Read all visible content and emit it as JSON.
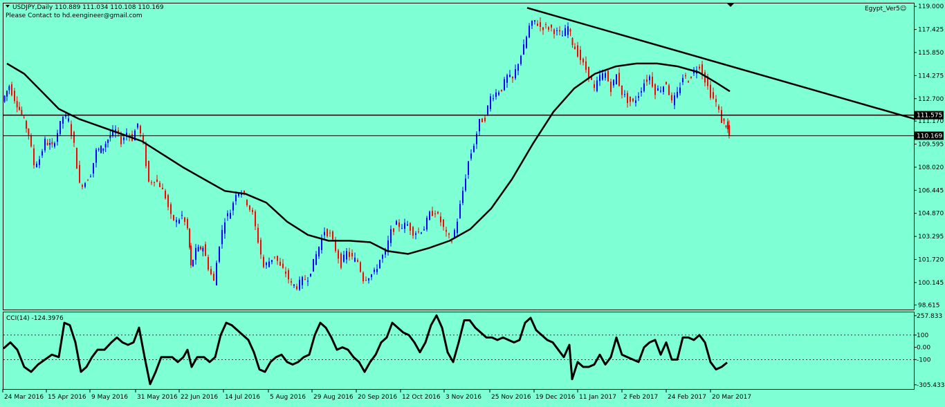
{
  "header": {
    "symbol_line": "USDJPY,Daily  110.889 111.034 110.108 110.169",
    "contact_line": "Please Contact to hd.eengineer@gmail.com",
    "indicator_name": "Egypt_Ver5☺",
    "menu_icon": "triangle-down-icon",
    "scroll_icon": "triangle-down-icon"
  },
  "colors": {
    "background": "#7FFFD4",
    "bull": "#0000FF",
    "bear": "#FF0000",
    "line": "#000000"
  },
  "chart_data": [
    {
      "type": "candlestick",
      "symbol": "USDJPY",
      "timeframe": "Daily",
      "last_ohlc": {
        "open": 110.889,
        "high": 111.034,
        "low": 110.108,
        "close": 110.169
      },
      "ylim": [
        98.3,
        119.2
      ],
      "y_ticks": [
        "119.000",
        "117.425",
        "115.850",
        "114.275",
        "112.700",
        "111.170",
        "109.595",
        "108.020",
        "106.445",
        "104.870",
        "103.295",
        "101.720",
        "100.145",
        "98.615"
      ],
      "x_ticks": [
        "24 Mar 2016",
        "15 Apr 2016",
        "9 May 2016",
        "31 May 2016",
        "22 Jun 2016",
        "14 Jul 2016",
        "5 Aug 2016",
        "29 Aug 2016",
        "20 Sep 2016",
        "12 Oct 2016",
        "3 Nov 2016",
        "25 Nov 2016",
        "19 Dec 2016",
        "11 Jan 2017",
        "2 Feb 2017",
        "24 Feb 2017",
        "20 Mar 2017"
      ],
      "price_path": [
        [
          0,
          112.5
        ],
        [
          10,
          113.6
        ],
        [
          18,
          112.7
        ],
        [
          28,
          111.6
        ],
        [
          38,
          110.3
        ],
        [
          46,
          108.2
        ],
        [
          54,
          108.6
        ],
        [
          62,
          109.8
        ],
        [
          72,
          109.4
        ],
        [
          80,
          110.4
        ],
        [
          88,
          111.5
        ],
        [
          96,
          111.2
        ],
        [
          104,
          109.5
        ],
        [
          112,
          106.8
        ],
        [
          120,
          107.0
        ],
        [
          128,
          107.6
        ],
        [
          136,
          109.1
        ],
        [
          146,
          109.4
        ],
        [
          156,
          110.2
        ],
        [
          164,
          110.5
        ],
        [
          172,
          109.8
        ],
        [
          180,
          110.4
        ],
        [
          188,
          110.0
        ],
        [
          196,
          111.0
        ],
        [
          204,
          109.5
        ],
        [
          212,
          107.0
        ],
        [
          220,
          107.2
        ],
        [
          228,
          106.8
        ],
        [
          236,
          106.0
        ],
        [
          244,
          104.6
        ],
        [
          252,
          104.3
        ],
        [
          260,
          104.7
        ],
        [
          268,
          103.8
        ],
        [
          272,
          101.2
        ],
        [
          280,
          102.3
        ],
        [
          290,
          102.6
        ],
        [
          298,
          101.2
        ],
        [
          306,
          100.2
        ],
        [
          314,
          102.8
        ],
        [
          322,
          104.5
        ],
        [
          330,
          105.0
        ],
        [
          338,
          106.3
        ],
        [
          346,
          106.4
        ],
        [
          354,
          105.6
        ],
        [
          362,
          104.8
        ],
        [
          370,
          103.0
        ],
        [
          378,
          101.2
        ],
        [
          386,
          101.6
        ],
        [
          394,
          102.0
        ],
        [
          402,
          101.2
        ],
        [
          410,
          100.8
        ],
        [
          418,
          100.0
        ],
        [
          426,
          99.9
        ],
        [
          434,
          100.3
        ],
        [
          442,
          100.5
        ],
        [
          450,
          101.5
        ],
        [
          458,
          102.6
        ],
        [
          466,
          103.7
        ],
        [
          474,
          103.4
        ],
        [
          482,
          102.4
        ],
        [
          490,
          101.4
        ],
        [
          498,
          102.2
        ],
        [
          506,
          101.8
        ],
        [
          514,
          101.6
        ],
        [
          522,
          100.4
        ],
        [
          530,
          100.6
        ],
        [
          538,
          100.8
        ],
        [
          546,
          101.7
        ],
        [
          554,
          102.2
        ],
        [
          562,
          103.6
        ],
        [
          570,
          104.1
        ],
        [
          578,
          104.0
        ],
        [
          586,
          104.1
        ],
        [
          594,
          103.6
        ],
        [
          602,
          103.6
        ],
        [
          610,
          103.9
        ],
        [
          618,
          104.8
        ],
        [
          626,
          105.0
        ],
        [
          634,
          104.3
        ],
        [
          642,
          103.4
        ],
        [
          650,
          103.0
        ],
        [
          658,
          104.4
        ],
        [
          666,
          106.4
        ],
        [
          674,
          108.4
        ],
        [
          682,
          109.6
        ],
        [
          690,
          111.1
        ],
        [
          698,
          111.4
        ],
        [
          706,
          112.8
        ],
        [
          714,
          113.1
        ],
        [
          722,
          113.4
        ],
        [
          730,
          114.2
        ],
        [
          738,
          114.0
        ],
        [
          746,
          115.2
        ],
        [
          754,
          116.2
        ],
        [
          762,
          117.6
        ],
        [
          770,
          118.0
        ],
        [
          778,
          117.6
        ],
        [
          786,
          117.6
        ],
        [
          794,
          117.5
        ],
        [
          802,
          117.2
        ],
        [
          810,
          117.0
        ],
        [
          818,
          117.6
        ],
        [
          824,
          116.5
        ],
        [
          832,
          115.8
        ],
        [
          840,
          115.0
        ],
        [
          848,
          114.4
        ],
        [
          856,
          113.3
        ],
        [
          864,
          114.2
        ],
        [
          872,
          114.4
        ],
        [
          880,
          113.4
        ],
        [
          888,
          114.3
        ],
        [
          896,
          113.1
        ],
        [
          904,
          112.6
        ],
        [
          912,
          112.4
        ],
        [
          920,
          113.0
        ],
        [
          928,
          113.8
        ],
        [
          936,
          114.2
        ],
        [
          944,
          113.2
        ],
        [
          952,
          113.4
        ],
        [
          960,
          113.8
        ],
        [
          968,
          112.4
        ],
        [
          976,
          113.0
        ],
        [
          984,
          114.2
        ],
        [
          992,
          114.0
        ],
        [
          1000,
          114.6
        ],
        [
          1008,
          115.0
        ],
        [
          1016,
          114.0
        ],
        [
          1024,
          113.0
        ],
        [
          1032,
          112.4
        ],
        [
          1040,
          111.2
        ],
        [
          1046,
          110.9
        ],
        [
          1050,
          110.17
        ]
      ],
      "moving_average": [
        [
          5,
          115.1
        ],
        [
          30,
          114.4
        ],
        [
          55,
          113.2
        ],
        [
          80,
          112.0
        ],
        [
          110,
          111.3
        ],
        [
          140,
          110.8
        ],
        [
          170,
          110.3
        ],
        [
          200,
          109.8
        ],
        [
          230,
          108.9
        ],
        [
          260,
          108.0
        ],
        [
          290,
          107.2
        ],
        [
          320,
          106.4
        ],
        [
          350,
          106.2
        ],
        [
          380,
          105.6
        ],
        [
          410,
          104.3
        ],
        [
          440,
          103.4
        ],
        [
          470,
          103.0
        ],
        [
          500,
          103.0
        ],
        [
          530,
          102.9
        ],
        [
          555,
          102.3
        ],
        [
          585,
          102.1
        ],
        [
          615,
          102.5
        ],
        [
          645,
          103.0
        ],
        [
          675,
          103.8
        ],
        [
          705,
          105.2
        ],
        [
          735,
          107.2
        ],
        [
          765,
          109.6
        ],
        [
          795,
          111.8
        ],
        [
          825,
          113.4
        ],
        [
          855,
          114.4
        ],
        [
          885,
          114.9
        ],
        [
          915,
          115.1
        ],
        [
          945,
          115.1
        ],
        [
          975,
          114.9
        ],
        [
          1005,
          114.5
        ],
        [
          1030,
          113.8
        ],
        [
          1050,
          113.2
        ]
      ],
      "trendline": {
        "from": [
          757,
          118.9
        ],
        "to": [
          1318,
          111.3
        ]
      },
      "horizontal_lines": [
        111.575,
        110.169
      ],
      "price_tags": [
        "111.575",
        "110.169"
      ]
    },
    {
      "type": "line",
      "title": "CCI(14) -124.3976",
      "ylim": [
        -340,
        285
      ],
      "y_ticks": [
        "257.833",
        "100",
        "0.00",
        "-100",
        "-305.4332"
      ],
      "levels": [
        100,
        -100
      ],
      "series": [
        [
          0,
          -10
        ],
        [
          10,
          40
        ],
        [
          20,
          -20
        ],
        [
          30,
          -160
        ],
        [
          40,
          -200
        ],
        [
          50,
          -140
        ],
        [
          60,
          -100
        ],
        [
          70,
          -60
        ],
        [
          80,
          -80
        ],
        [
          88,
          200
        ],
        [
          96,
          180
        ],
        [
          104,
          40
        ],
        [
          112,
          -200
        ],
        [
          120,
          -160
        ],
        [
          128,
          -80
        ],
        [
          136,
          -20
        ],
        [
          146,
          -20
        ],
        [
          156,
          40
        ],
        [
          164,
          80
        ],
        [
          172,
          40
        ],
        [
          180,
          20
        ],
        [
          188,
          40
        ],
        [
          196,
          160
        ],
        [
          204,
          -80
        ],
        [
          212,
          -300
        ],
        [
          220,
          -200
        ],
        [
          228,
          -80
        ],
        [
          236,
          -80
        ],
        [
          244,
          -80
        ],
        [
          252,
          -120
        ],
        [
          260,
          -80
        ],
        [
          266,
          -20
        ],
        [
          272,
          -160
        ],
        [
          280,
          -80
        ],
        [
          290,
          -80
        ],
        [
          298,
          -120
        ],
        [
          306,
          -80
        ],
        [
          314,
          100
        ],
        [
          322,
          200
        ],
        [
          330,
          180
        ],
        [
          338,
          140
        ],
        [
          346,
          100
        ],
        [
          354,
          60
        ],
        [
          362,
          -40
        ],
        [
          370,
          -180
        ],
        [
          378,
          -200
        ],
        [
          386,
          -120
        ],
        [
          394,
          -80
        ],
        [
          402,
          -60
        ],
        [
          410,
          -120
        ],
        [
          418,
          -140
        ],
        [
          426,
          -120
        ],
        [
          434,
          -80
        ],
        [
          442,
          -60
        ],
        [
          450,
          100
        ],
        [
          458,
          200
        ],
        [
          466,
          160
        ],
        [
          474,
          80
        ],
        [
          482,
          -20
        ],
        [
          490,
          0
        ],
        [
          498,
          -20
        ],
        [
          506,
          -80
        ],
        [
          514,
          -120
        ],
        [
          522,
          -200
        ],
        [
          530,
          -120
        ],
        [
          538,
          -60
        ],
        [
          546,
          40
        ],
        [
          554,
          80
        ],
        [
          562,
          200
        ],
        [
          570,
          160
        ],
        [
          578,
          120
        ],
        [
          586,
          100
        ],
        [
          594,
          40
        ],
        [
          602,
          -40
        ],
        [
          610,
          40
        ],
        [
          618,
          180
        ],
        [
          626,
          260
        ],
        [
          634,
          160
        ],
        [
          642,
          -40
        ],
        [
          650,
          -120
        ],
        [
          658,
          40
        ],
        [
          666,
          220
        ],
        [
          674,
          220
        ],
        [
          682,
          160
        ],
        [
          690,
          120
        ],
        [
          698,
          80
        ],
        [
          706,
          80
        ],
        [
          714,
          60
        ],
        [
          722,
          80
        ],
        [
          730,
          60
        ],
        [
          738,
          40
        ],
        [
          746,
          60
        ],
        [
          754,
          200
        ],
        [
          762,
          240
        ],
        [
          770,
          140
        ],
        [
          778,
          100
        ],
        [
          786,
          60
        ],
        [
          794,
          40
        ],
        [
          802,
          -20
        ],
        [
          810,
          -80
        ],
        [
          818,
          20
        ],
        [
          822,
          -260
        ],
        [
          830,
          -120
        ],
        [
          838,
          -160
        ],
        [
          846,
          -160
        ],
        [
          854,
          -140
        ],
        [
          862,
          -60
        ],
        [
          870,
          -140
        ],
        [
          878,
          -80
        ],
        [
          886,
          80
        ],
        [
          894,
          -60
        ],
        [
          902,
          -80
        ],
        [
          910,
          -100
        ],
        [
          918,
          -120
        ],
        [
          926,
          0
        ],
        [
          934,
          40
        ],
        [
          942,
          60
        ],
        [
          950,
          -60
        ],
        [
          958,
          40
        ],
        [
          966,
          -100
        ],
        [
          974,
          -100
        ],
        [
          982,
          80
        ],
        [
          990,
          80
        ],
        [
          998,
          60
        ],
        [
          1006,
          100
        ],
        [
          1014,
          40
        ],
        [
          1022,
          -120
        ],
        [
          1030,
          -180
        ],
        [
          1038,
          -160
        ],
        [
          1046,
          -124
        ]
      ]
    }
  ]
}
